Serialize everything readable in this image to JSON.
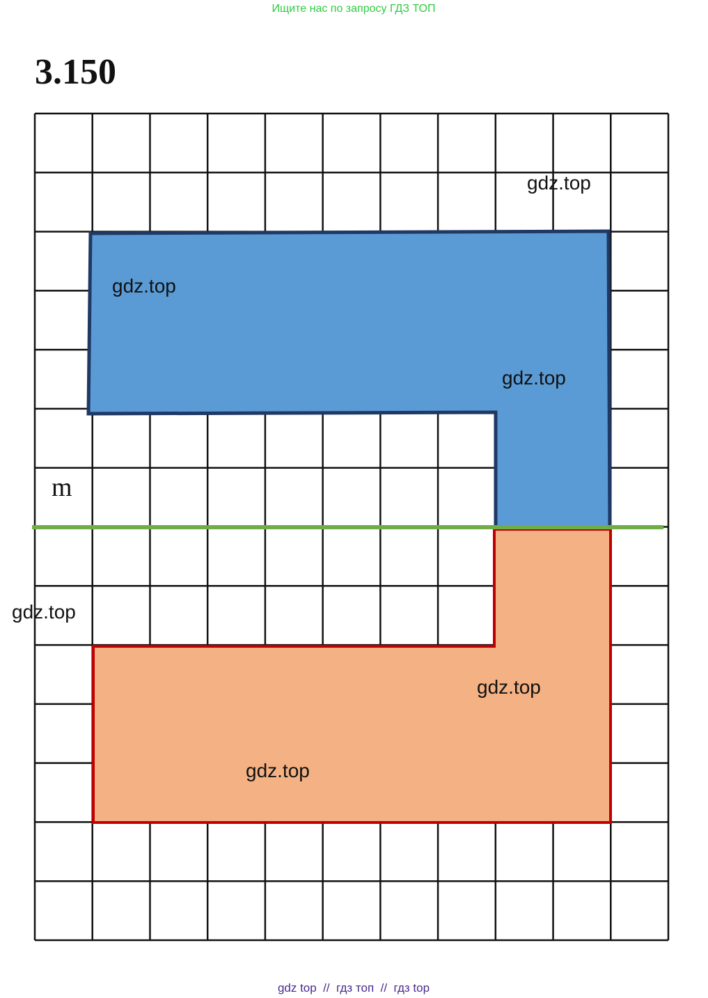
{
  "banner": "Ищите нас по запросу ГДЗ ТОП",
  "problem": "3.150",
  "line_label": "m",
  "watermarks": [
    "gdz.top",
    "gdz.top",
    "gdz.top",
    "gdz.top",
    "gdz.top",
    "gdz.top"
  ],
  "footer": "gdz top  //  гдз топ  //  гдз top"
}
